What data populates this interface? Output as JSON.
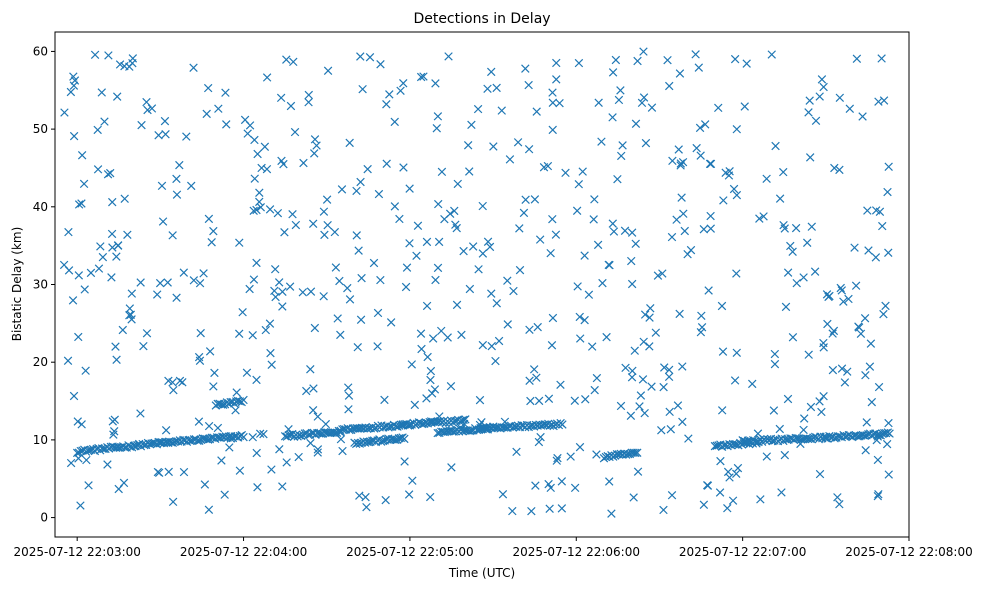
{
  "chart_data": {
    "type": "scatter",
    "title": "Detections in Delay",
    "xlabel": "Time (UTC)",
    "ylabel": "Bistatic Delay (km)",
    "marker": "x",
    "color": "#1f77b4",
    "xlim": [
      "2025-07-12 22:02:52",
      "2025-07-12 22:08:00"
    ],
    "ylim": [
      -2.5,
      62.5
    ],
    "xticks": [
      "2025-07-12 22:03:00",
      "2025-07-12 22:04:00",
      "2025-07-12 22:05:00",
      "2025-07-12 22:06:00",
      "2025-07-12 22:07:00",
      "2025-07-12 22:08:00"
    ],
    "yticks": [
      0,
      10,
      20,
      30,
      40,
      50,
      60
    ],
    "grid": false,
    "x_range": [
      "2025-07-12 22:02:55",
      "2025-07-12 22:07:53"
    ],
    "tracks": [
      {
        "t_start": "2025-07-12 22:03:00",
        "t_end": "2025-07-12 22:03:30",
        "delay_start": 8.5,
        "delay_end": 9.6
      },
      {
        "t_start": "2025-07-12 22:03:30",
        "t_end": "2025-07-12 22:04:00",
        "delay_start": 9.6,
        "delay_end": 10.5
      },
      {
        "t_start": "2025-07-12 22:03:50",
        "t_end": "2025-07-12 22:04:00",
        "delay_start": 14.5,
        "delay_end": 15.0
      },
      {
        "t_start": "2025-07-12 22:04:15",
        "t_end": "2025-07-12 22:04:35",
        "delay_start": 10.5,
        "delay_end": 11.0
      },
      {
        "t_start": "2025-07-12 22:04:35",
        "t_end": "2025-07-12 22:05:00",
        "delay_start": 11.3,
        "delay_end": 12.0
      },
      {
        "t_start": "2025-07-12 22:04:40",
        "t_end": "2025-07-12 22:04:58",
        "delay_start": 9.6,
        "delay_end": 10.2
      },
      {
        "t_start": "2025-07-12 22:05:00",
        "t_end": "2025-07-12 22:05:20",
        "delay_start": 12.0,
        "delay_end": 12.5
      },
      {
        "t_start": "2025-07-12 22:05:10",
        "t_end": "2025-07-12 22:05:30",
        "delay_start": 11.0,
        "delay_end": 11.5
      },
      {
        "t_start": "2025-07-12 22:05:25",
        "t_end": "2025-07-12 22:05:55",
        "delay_start": 11.5,
        "delay_end": 12.0
      },
      {
        "t_start": "2025-07-12 22:06:10",
        "t_end": "2025-07-12 22:06:22",
        "delay_start": 7.8,
        "delay_end": 8.3
      },
      {
        "t_start": "2025-07-12 22:06:50",
        "t_end": "2025-07-12 22:07:05",
        "delay_start": 9.2,
        "delay_end": 9.7
      },
      {
        "t_start": "2025-07-12 22:07:00",
        "t_end": "2025-07-12 22:07:30",
        "delay_start": 9.8,
        "delay_end": 10.3
      },
      {
        "t_start": "2025-07-12 22:07:30",
        "t_end": "2025-07-12 22:07:53",
        "delay_start": 10.3,
        "delay_end": 10.8
      }
    ],
    "scatter_delay_range": [
      0.5,
      60
    ],
    "approx_point_count": 1100
  }
}
